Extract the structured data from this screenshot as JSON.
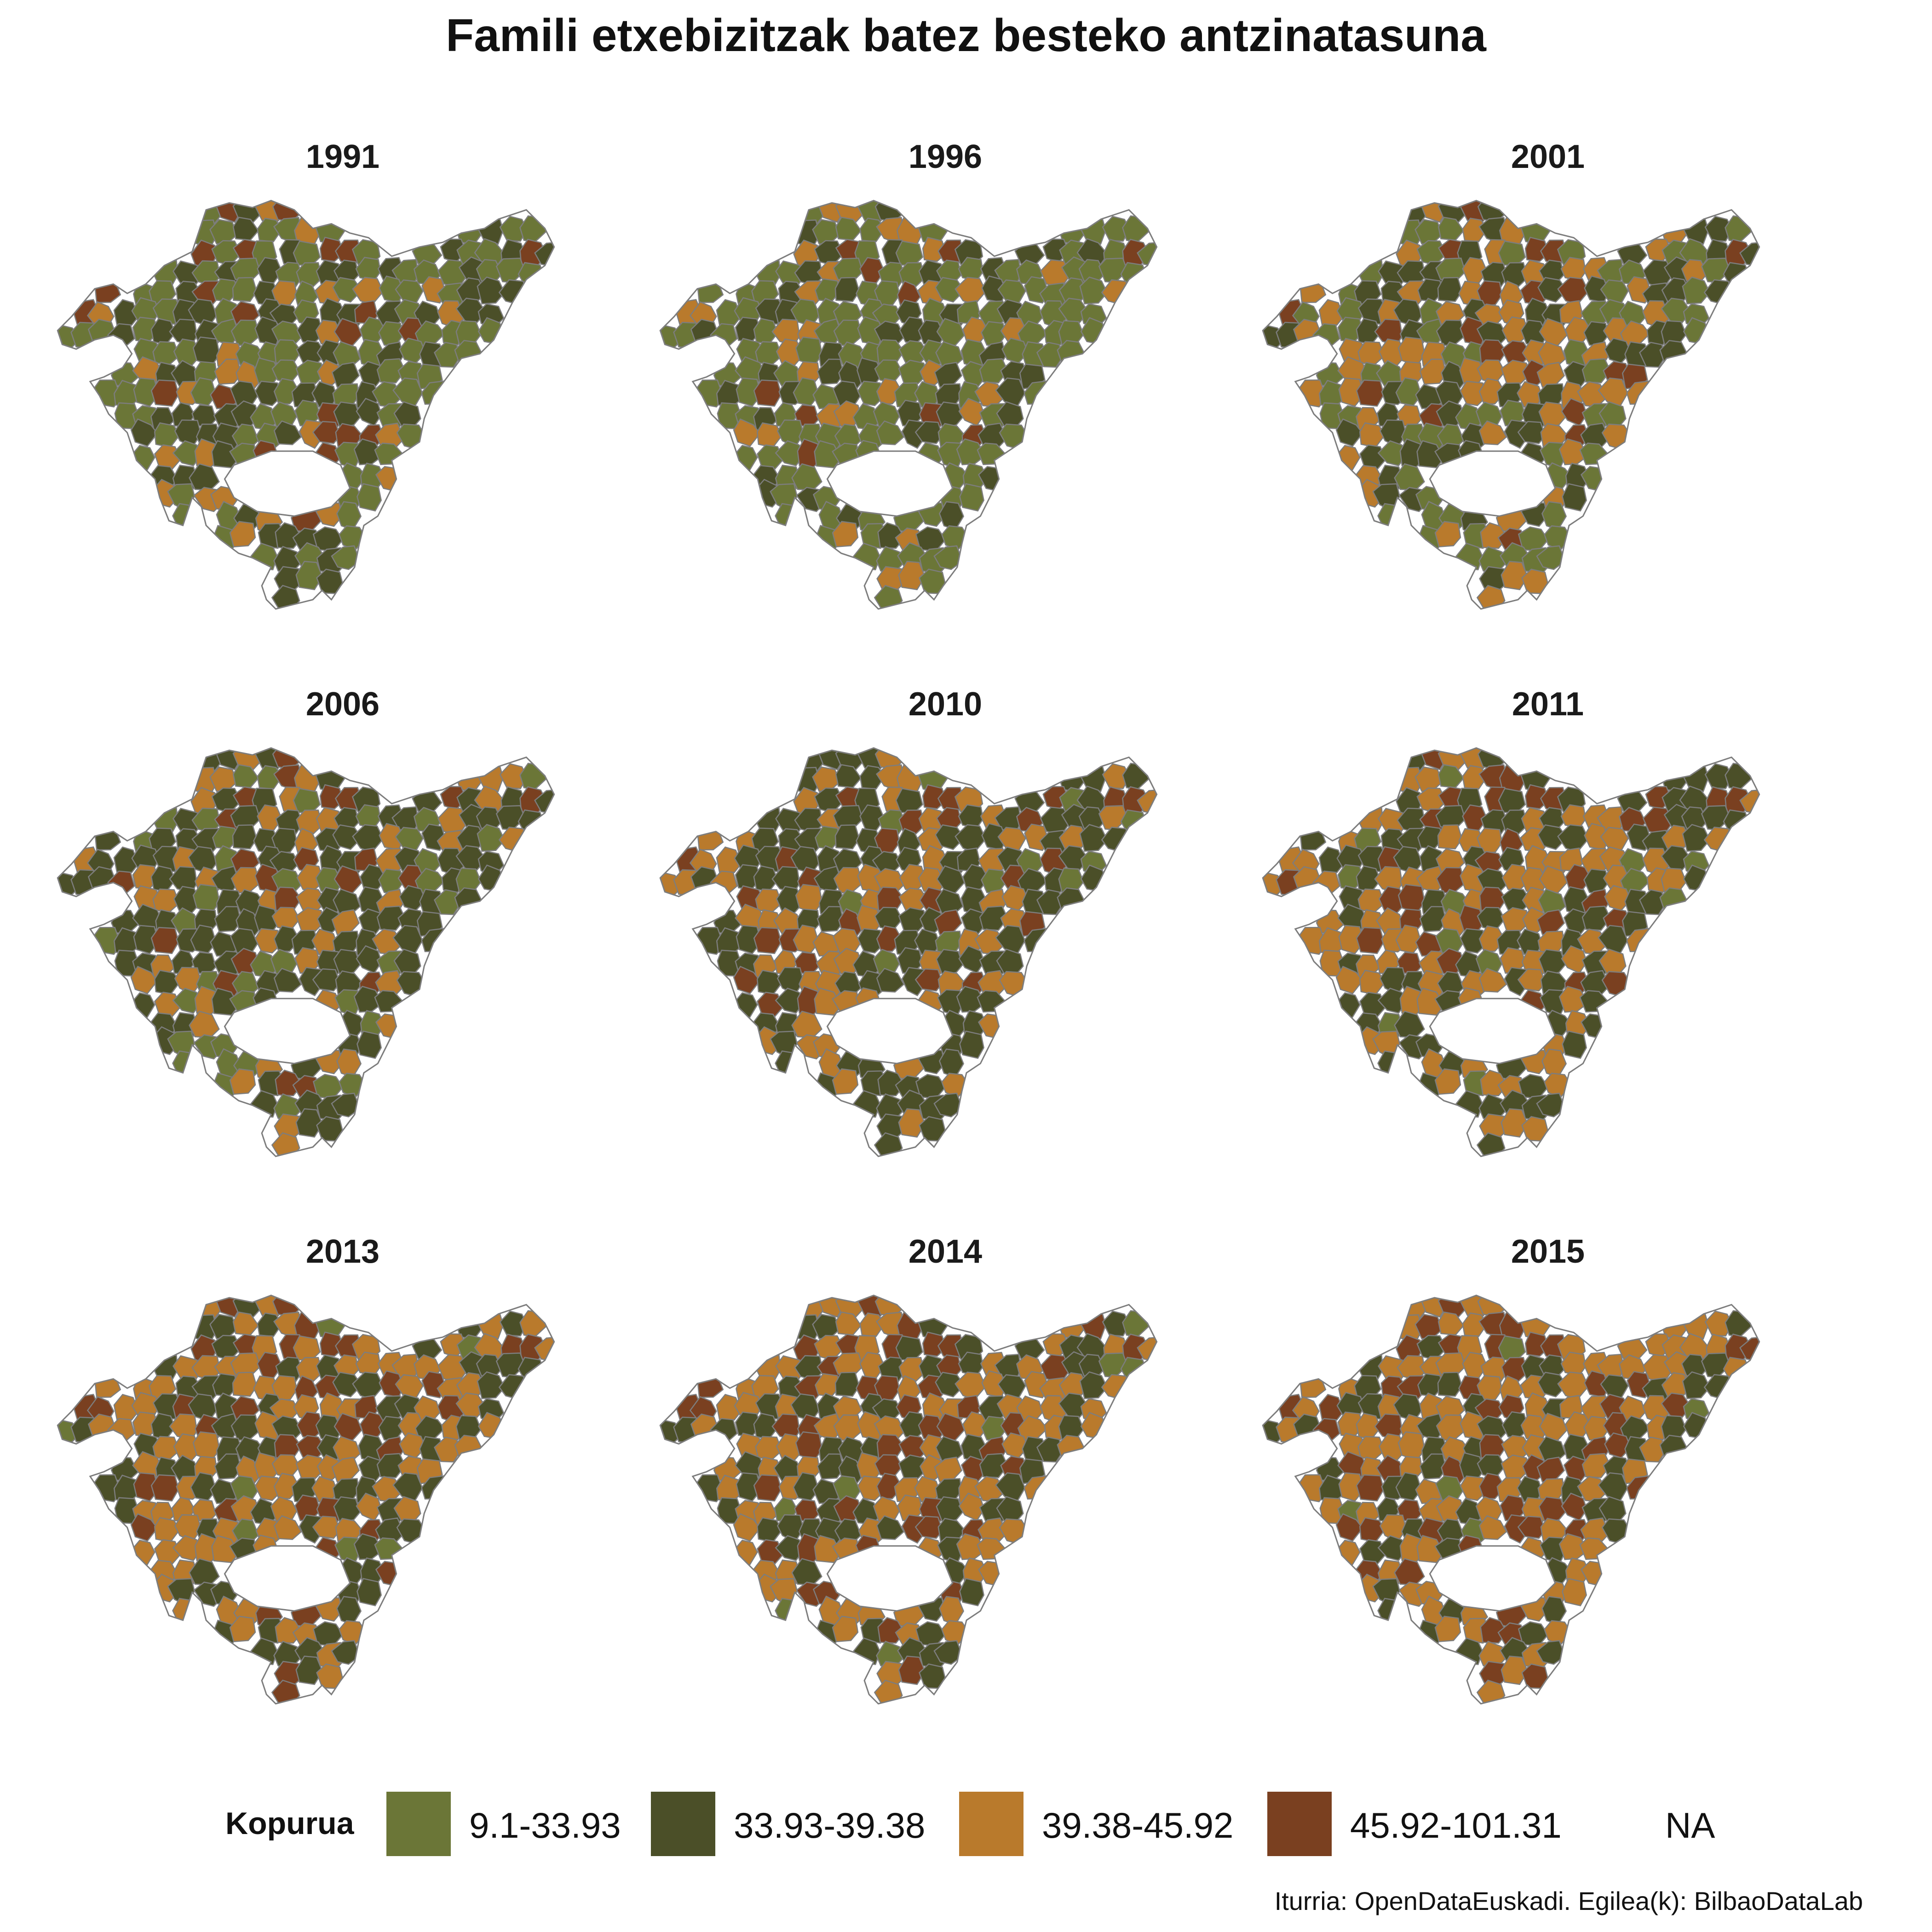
{
  "title": "Famili etxebizitzak batez besteko antzinatasuna",
  "colors": {
    "c1": "#6b7637",
    "c2": "#4b4f28",
    "c3": "#b97a2c",
    "c4": "#7a4020",
    "border": "#7d7d7d"
  },
  "panels": [
    {
      "year": "1991",
      "weights": [
        0.5,
        0.18,
        0.1,
        0.22
      ]
    },
    {
      "year": "1996",
      "weights": [
        0.55,
        0.17,
        0.13,
        0.15
      ]
    },
    {
      "year": "2001",
      "weights": [
        0.4,
        0.18,
        0.22,
        0.2
      ]
    },
    {
      "year": "2006",
      "weights": [
        0.3,
        0.32,
        0.18,
        0.2
      ]
    },
    {
      "year": "2010",
      "weights": [
        0.2,
        0.33,
        0.24,
        0.23
      ]
    },
    {
      "year": "2011",
      "weights": [
        0.18,
        0.32,
        0.25,
        0.25
      ]
    },
    {
      "year": "2013",
      "weights": [
        0.15,
        0.3,
        0.27,
        0.28
      ]
    },
    {
      "year": "2014",
      "weights": [
        0.12,
        0.3,
        0.28,
        0.3
      ]
    },
    {
      "year": "2015",
      "weights": [
        0.1,
        0.28,
        0.29,
        0.33
      ]
    }
  ],
  "legend": {
    "title": "Kopurua",
    "items": [
      {
        "label": "9.1-33.93",
        "color": "#6b7637"
      },
      {
        "label": "33.93-39.38",
        "color": "#4b4f28"
      },
      {
        "label": "39.38-45.92",
        "color": "#b97a2c"
      },
      {
        "label": "45.92-101.31",
        "color": "#7a4020"
      },
      {
        "label": "NA",
        "color": ""
      }
    ]
  },
  "source": "Iturria: OpenDataEuskadi. Egilea(k): BilbaoDataLab"
}
